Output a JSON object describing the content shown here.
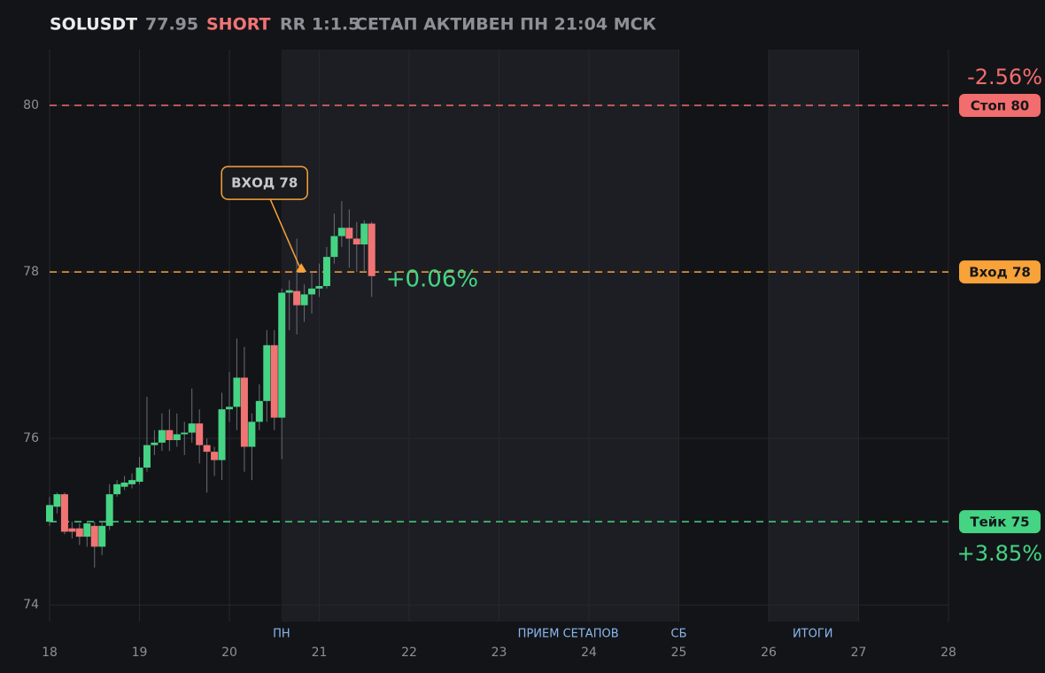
{
  "header": {
    "symbol": "SOLUSDT",
    "price": "77.95",
    "side": "SHORT",
    "rr": "RR 1:1.5",
    "status": "СЕТАП АКТИВЕН ПН 21:04 МСК"
  },
  "chart_data": {
    "type": "candlestick",
    "x": [
      18,
      18.0833,
      18.1667,
      18.25,
      18.3333,
      18.4167,
      18.5,
      18.5833,
      18.6667,
      18.75,
      18.8333,
      18.9167,
      19,
      19.0833,
      19.1667,
      19.25,
      19.3333,
      19.4167,
      19.5,
      19.5833,
      19.6667,
      19.75,
      19.8333,
      19.9167,
      20,
      20.0833,
      20.1667,
      20.25,
      20.3333,
      20.4167,
      20.5,
      20.5833,
      20.6667,
      20.75,
      20.8333,
      20.9167,
      21,
      21.0833,
      21.1667,
      21.25,
      21.3333,
      21.4167,
      21.5,
      21.5833
    ],
    "open": [
      75.0,
      75.18,
      75.33,
      74.92,
      74.92,
      74.82,
      74.95,
      74.7,
      74.95,
      75.33,
      75.42,
      75.45,
      75.48,
      75.65,
      75.92,
      75.95,
      76.1,
      75.98,
      76.05,
      76.07,
      76.18,
      75.92,
      75.84,
      75.74,
      76.35,
      76.38,
      76.73,
      75.9,
      76.2,
      76.45,
      77.12,
      76.25,
      77.75,
      77.77,
      77.6,
      77.73,
      77.8,
      77.83,
      78.18,
      78.43,
      78.53,
      78.4,
      78.33,
      78.58
    ],
    "high": [
      75.3,
      75.35,
      75.35,
      75.0,
      74.98,
      75.0,
      75.0,
      75.0,
      75.45,
      75.5,
      75.55,
      75.58,
      75.78,
      76.5,
      76.1,
      76.3,
      76.35,
      76.3,
      76.2,
      76.6,
      76.35,
      76.0,
      75.9,
      76.55,
      76.8,
      77.2,
      77.1,
      76.3,
      76.65,
      77.3,
      77.3,
      77.8,
      77.9,
      78.4,
      77.85,
      78.0,
      78.1,
      78.3,
      78.7,
      78.85,
      78.75,
      78.6,
      78.62,
      78.6
    ],
    "low": [
      74.95,
      75.1,
      74.85,
      74.8,
      74.72,
      74.7,
      74.45,
      74.6,
      74.9,
      75.3,
      75.38,
      75.4,
      75.45,
      75.6,
      75.8,
      75.85,
      75.85,
      75.9,
      75.8,
      75.95,
      75.7,
      75.35,
      75.55,
      75.5,
      76.2,
      76.1,
      75.6,
      75.5,
      76.1,
      76.2,
      76.1,
      75.75,
      77.3,
      77.25,
      77.4,
      77.5,
      77.7,
      77.8,
      78.1,
      78.3,
      78.05,
      78.0,
      78.0,
      77.7
    ],
    "close": [
      75.2,
      75.33,
      74.88,
      74.88,
      74.82,
      74.98,
      74.7,
      74.95,
      75.33,
      75.45,
      75.47,
      75.5,
      75.65,
      75.92,
      75.95,
      76.1,
      75.98,
      76.05,
      76.07,
      76.18,
      75.92,
      75.84,
      75.74,
      76.35,
      76.38,
      76.73,
      75.9,
      76.2,
      76.45,
      77.12,
      76.25,
      77.75,
      77.78,
      77.6,
      77.73,
      77.8,
      77.83,
      78.18,
      78.43,
      78.53,
      78.4,
      78.33,
      78.58,
      77.95
    ],
    "up_color": "#45d483",
    "down_color": "#f07474",
    "xlim": [
      18,
      28
    ],
    "xticks": [
      18,
      19,
      20,
      21,
      22,
      23,
      24,
      25,
      26,
      27,
      28
    ],
    "ylim": [
      73.8,
      80.67
    ],
    "yticks": [
      74,
      76,
      78,
      80
    ],
    "grid": true,
    "shaded_ranges": [
      [
        20.58,
        25
      ],
      [
        26,
        27
      ]
    ],
    "session_labels": [
      {
        "x": 20.58,
        "label": "ПН"
      },
      {
        "x": 23.77,
        "label": "ПРИЕМ СЕТАПОВ"
      },
      {
        "x": 25,
        "label": "СБ"
      },
      {
        "x": 26.49,
        "label": "ИТОГИ"
      }
    ],
    "levels": [
      {
        "name": "Стоп 80",
        "value": 80,
        "color": "#f26d6d",
        "change": "-2.56%"
      },
      {
        "name": "Вход 78",
        "value": 78,
        "color": "#f8a23a"
      },
      {
        "name": "Тейк 75",
        "value": 75,
        "color": "#45d483",
        "change": "+3.85%"
      }
    ],
    "entry_marker": {
      "label": "ВХОД 78",
      "x": 20.8,
      "y": 78
    },
    "last_change": "+0.06%"
  }
}
